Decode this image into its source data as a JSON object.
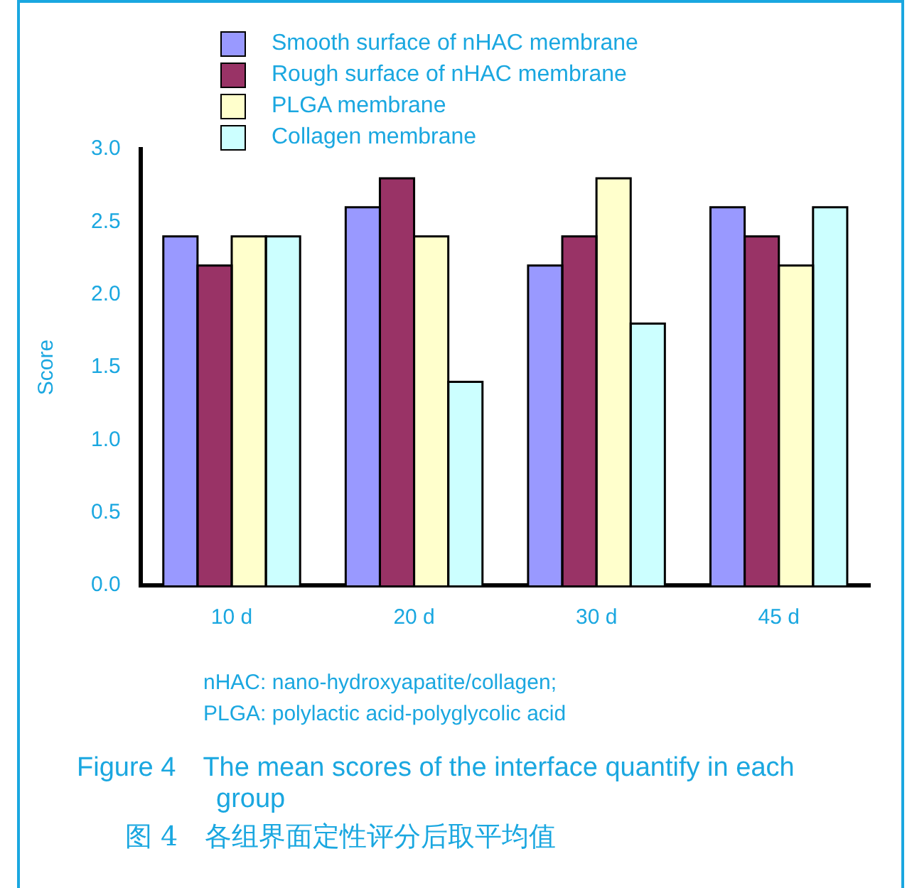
{
  "chart_data": {
    "type": "bar",
    "title": "Figure 4　The mean scores of the interface quantify in each group",
    "subtitle": "图 4　各组界面定性评分后取平均值",
    "ylabel": "Score",
    "categories": [
      "10 d",
      "20 d",
      "30 d",
      "45 d"
    ],
    "series": [
      {
        "name": "Smooth surface of nHAC membrane",
        "color": "#9999ff",
        "values": [
          2.4,
          2.6,
          2.2,
          2.6
        ]
      },
      {
        "name": "Rough surface of nHAC membrane",
        "color": "#993366",
        "values": [
          2.2,
          2.8,
          2.4,
          2.4
        ]
      },
      {
        "name": "PLGA membrane",
        "color": "#ffffcc",
        "values": [
          2.4,
          2.4,
          2.8,
          2.2
        ]
      },
      {
        "name": "Collagen membrane",
        "color": "#ccffff",
        "values": [
          2.4,
          1.4,
          1.8,
          2.6
        ]
      }
    ],
    "ylim": [
      0,
      3
    ],
    "yticks": [
      {
        "value": 0,
        "label": "0.0"
      },
      {
        "value": 0.5,
        "label": "0.5"
      },
      {
        "value": 1,
        "label": "1.0"
      },
      {
        "value": 1.5,
        "label": "1.5"
      },
      {
        "value": 2,
        "label": "2.0"
      },
      {
        "value": 2.5,
        "label": "2.5"
      },
      {
        "value": 3,
        "label": "3.0"
      }
    ],
    "grid": false,
    "legend": "top",
    "annotations": [
      "nHAC: nano-hydroxyapatite/collagen;",
      "PLGA: polylactic acid-polyglycolic acid"
    ]
  }
}
